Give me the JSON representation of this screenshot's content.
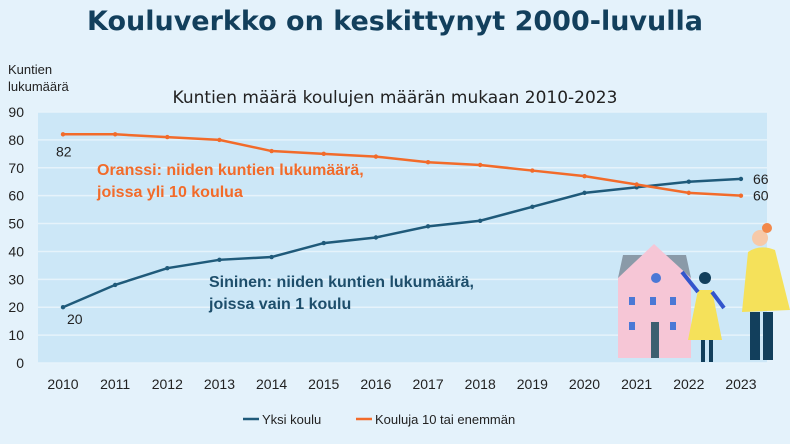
{
  "header": {
    "title": "Kouluverkko on keskittynyt 2000-luvulla"
  },
  "chart_data": {
    "type": "line",
    "title": "Kuntien määrä koulujen määrän mukaan 2010-2023",
    "ylabel": "Kuntien lukumäärä",
    "xlabel": "",
    "ylim": [
      0,
      90
    ],
    "yticks": [
      0,
      10,
      20,
      30,
      40,
      50,
      60,
      70,
      80,
      90
    ],
    "grid": true,
    "legend_position": "bottom",
    "categories": [
      "2010",
      "2011",
      "2012",
      "2013",
      "2014",
      "2015",
      "2016",
      "2017",
      "2018",
      "2019",
      "2020",
      "2021",
      "2022",
      "2023"
    ],
    "series": [
      {
        "name": "Yksi koulu",
        "color": "#1f5a7a",
        "values": [
          20,
          28,
          34,
          37,
          38,
          43,
          45,
          49,
          51,
          56,
          61,
          63,
          65,
          66
        ],
        "data_labels": {
          "first": "20",
          "last": "66"
        }
      },
      {
        "name": "Kouluja 10 tai enemmän",
        "color": "#f26b2a",
        "values": [
          82,
          82,
          81,
          80,
          76,
          75,
          74,
          72,
          71,
          69,
          67,
          64,
          61,
          60
        ],
        "data_labels": {
          "first": "82",
          "last": "60"
        }
      }
    ],
    "annotations": {
      "orange": [
        "Oranssi: niiden kuntien lukumäärä,",
        "joissa yli 10 koulua"
      ],
      "blue": [
        "Sininen: niiden kuntien lukumäärä,",
        "joissa vain 1 koulu"
      ]
    }
  },
  "illustration": {
    "icon": "house-and-people-illustration"
  }
}
